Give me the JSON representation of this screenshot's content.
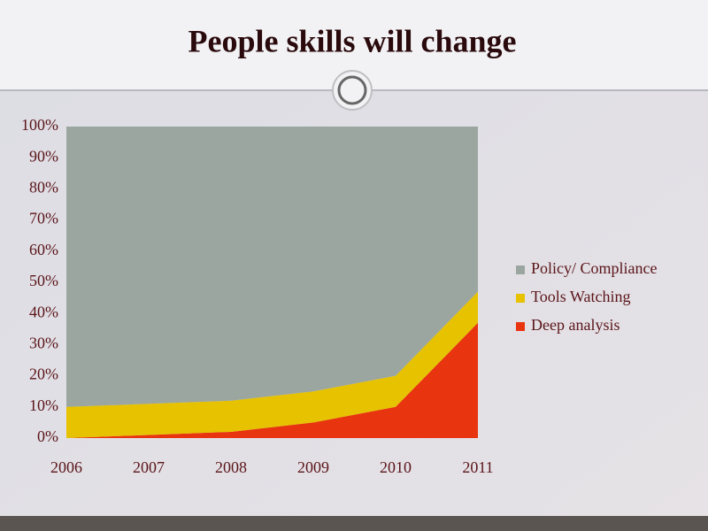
{
  "chart_data": {
    "type": "stacked_area",
    "title": "People skills will change",
    "categories": [
      "2006",
      "2007",
      "2008",
      "2009",
      "2010",
      "2011"
    ],
    "series": [
      {
        "name": "Policy/ Compliance",
        "color": "#9ba6a1",
        "values": [
          90,
          89,
          88,
          85,
          80,
          53
        ]
      },
      {
        "name": "Tools Watching",
        "color": "#e6c200",
        "values": [
          10,
          10,
          10,
          10,
          10,
          10
        ]
      },
      {
        "name": "Deep analysis",
        "color": "#e8340f",
        "values": [
          0,
          1,
          2,
          5,
          10,
          37
        ]
      }
    ],
    "ylim": [
      0,
      100
    ],
    "yticks": [
      {
        "value": 0,
        "label": "0%"
      },
      {
        "value": 10,
        "label": "10%"
      },
      {
        "value": 20,
        "label": "20%"
      },
      {
        "value": 30,
        "label": "30%"
      },
      {
        "value": 40,
        "label": "40%"
      },
      {
        "value": 50,
        "label": "50%"
      },
      {
        "value": 60,
        "label": "60%"
      },
      {
        "value": 70,
        "label": "70%"
      },
      {
        "value": 80,
        "label": "80%"
      },
      {
        "value": 90,
        "label": "90%"
      },
      {
        "value": 100,
        "label": "100%"
      }
    ],
    "legend": "right"
  }
}
